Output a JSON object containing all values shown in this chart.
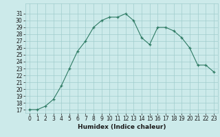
{
  "x": [
    0,
    1,
    2,
    3,
    4,
    5,
    6,
    7,
    8,
    9,
    10,
    11,
    12,
    13,
    14,
    15,
    16,
    17,
    18,
    19,
    20,
    21,
    22,
    23
  ],
  "y": [
    17,
    17,
    17.5,
    18.5,
    20.5,
    23,
    25.5,
    27,
    29,
    30,
    30.5,
    30.5,
    31,
    30,
    27.5,
    26.5,
    29,
    29,
    28.5,
    27.5,
    26,
    23.5,
    23.5,
    22.5
  ],
  "xlabel": "Humidex (Indice chaleur)",
  "ylim": [
    16.5,
    32.5
  ],
  "xlim": [
    -0.5,
    23.5
  ],
  "yticks": [
    17,
    18,
    19,
    20,
    21,
    22,
    23,
    24,
    25,
    26,
    27,
    28,
    29,
    30,
    31
  ],
  "xticks": [
    0,
    1,
    2,
    3,
    4,
    5,
    6,
    7,
    8,
    9,
    10,
    11,
    12,
    13,
    14,
    15,
    16,
    17,
    18,
    19,
    20,
    21,
    22,
    23
  ],
  "line_color": "#2d7a63",
  "bg_color": "#cceaea",
  "grid_color": "#a0cccc",
  "font_color": "#1a1a1a",
  "tick_fontsize": 5.5,
  "xlabel_fontsize": 6.5
}
